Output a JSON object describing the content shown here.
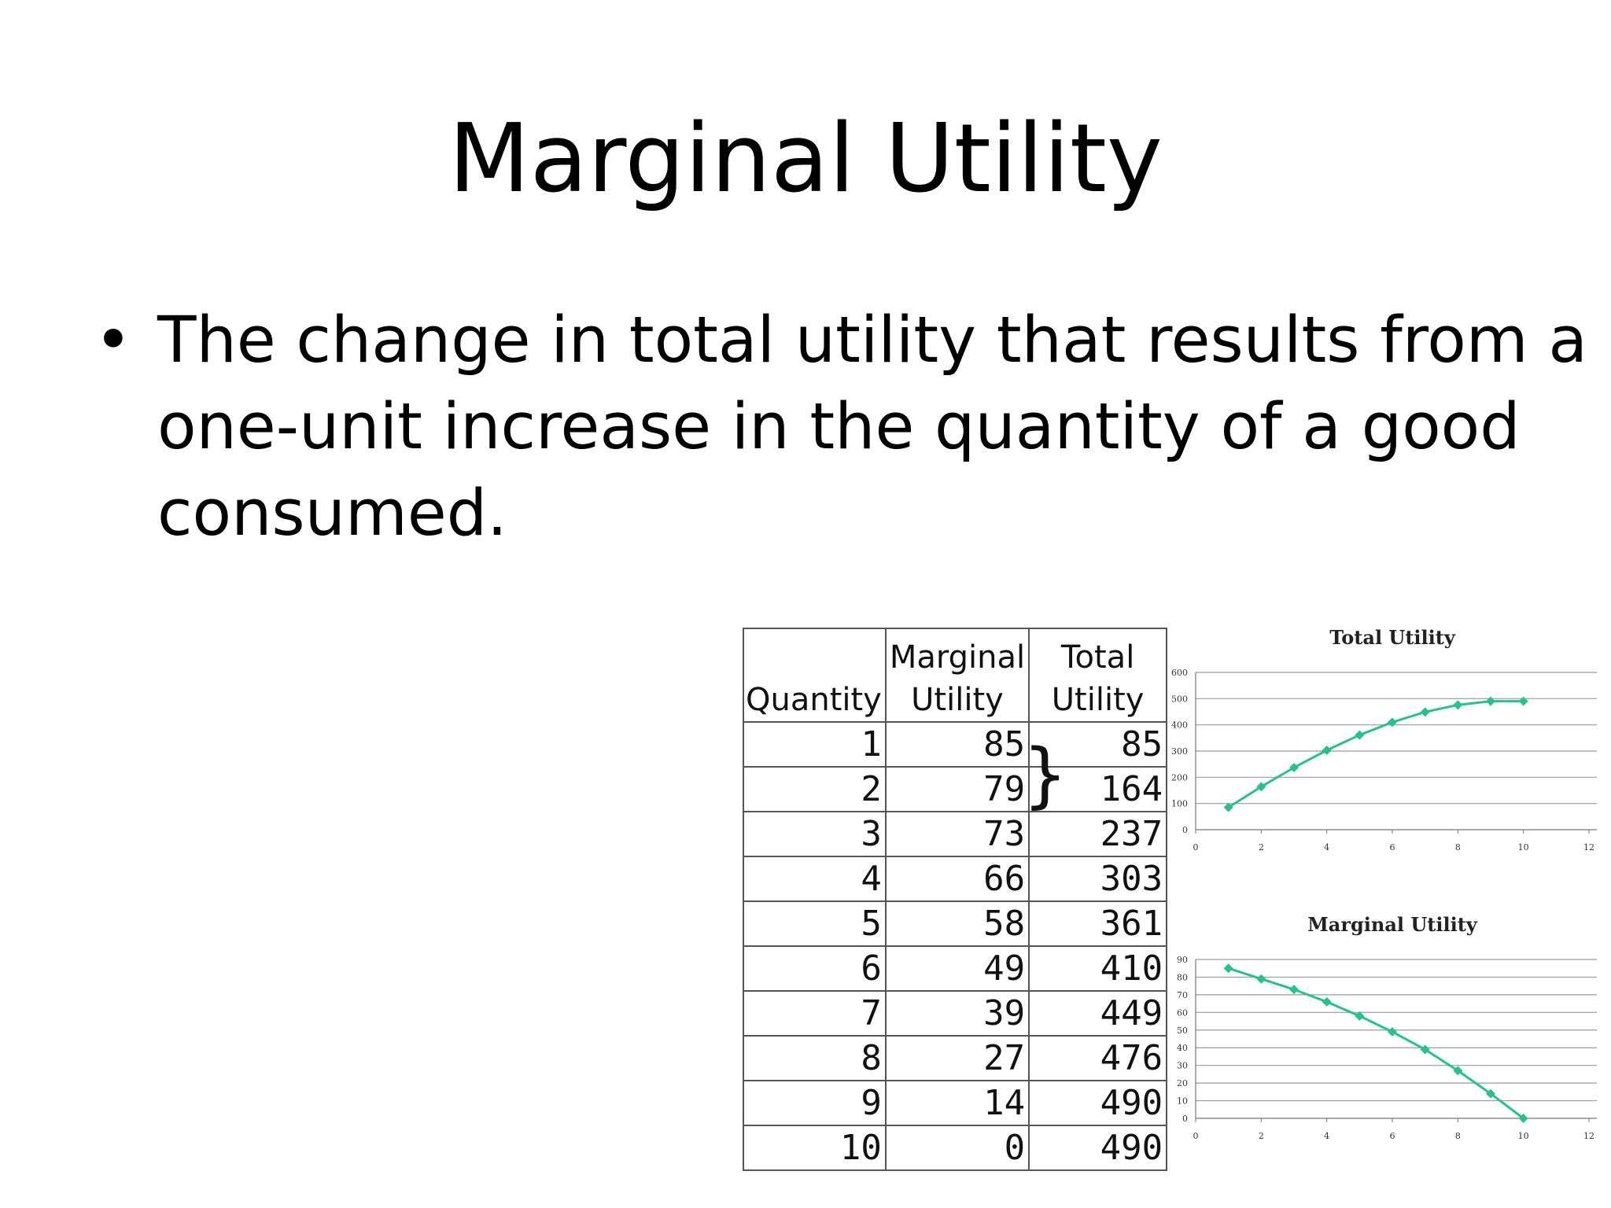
{
  "slide": {
    "title": "Marginal Utility",
    "bullet": "•",
    "bullet_lines": [
      "The change in total utility that results from a",
      "one-unit increase in the quantity of a good",
      "consumed."
    ]
  },
  "table": {
    "headers": {
      "quantity": "Quantity",
      "marginal_line1": "Marginal",
      "marginal_line2": "Utility",
      "total_line1": "Total",
      "total_line2": "Utility"
    },
    "rows": [
      {
        "q": "1",
        "mu": "85",
        "tu": "85"
      },
      {
        "q": "2",
        "mu": "79",
        "tu": "164"
      },
      {
        "q": "3",
        "mu": "73",
        "tu": "237"
      },
      {
        "q": "4",
        "mu": "66",
        "tu": "303"
      },
      {
        "q": "5",
        "mu": "58",
        "tu": "361"
      },
      {
        "q": "6",
        "mu": "49",
        "tu": "410"
      },
      {
        "q": "7",
        "mu": "39",
        "tu": "449"
      },
      {
        "q": "8",
        "mu": "27",
        "tu": "476"
      },
      {
        "q": "9",
        "mu": "14",
        "tu": "490"
      },
      {
        "q": "10",
        "mu": "0",
        "tu": "490"
      }
    ],
    "brace": "}"
  },
  "chart_data": [
    {
      "type": "line",
      "title": "Total Utility",
      "xlabel": "",
      "ylabel": "",
      "x": [
        1,
        2,
        3,
        4,
        5,
        6,
        7,
        8,
        9,
        10
      ],
      "series": [
        {
          "values": [
            85,
            164,
            237,
            303,
            361,
            410,
            449,
            476,
            490,
            490
          ]
        }
      ],
      "xlim": [
        0,
        12
      ],
      "ylim": [
        0,
        600
      ],
      "xticks": [
        0,
        2,
        4,
        6,
        8,
        10,
        12
      ],
      "yticks": [
        0,
        100,
        200,
        300,
        400,
        500,
        600
      ],
      "grid": true,
      "color": "#27c08e"
    },
    {
      "type": "line",
      "title": "Marginal Utility",
      "xlabel": "",
      "ylabel": "",
      "x": [
        1,
        2,
        3,
        4,
        5,
        6,
        7,
        8,
        9,
        10
      ],
      "series": [
        {
          "values": [
            85,
            79,
            73,
            66,
            58,
            49,
            39,
            27,
            14,
            0
          ]
        }
      ],
      "xlim": [
        0,
        12
      ],
      "ylim": [
        0,
        90
      ],
      "xticks": [
        0,
        2,
        4,
        6,
        8,
        10,
        12
      ],
      "yticks": [
        0,
        10,
        20,
        30,
        40,
        50,
        60,
        70,
        80,
        90
      ],
      "grid": true,
      "color": "#27c08e"
    }
  ]
}
